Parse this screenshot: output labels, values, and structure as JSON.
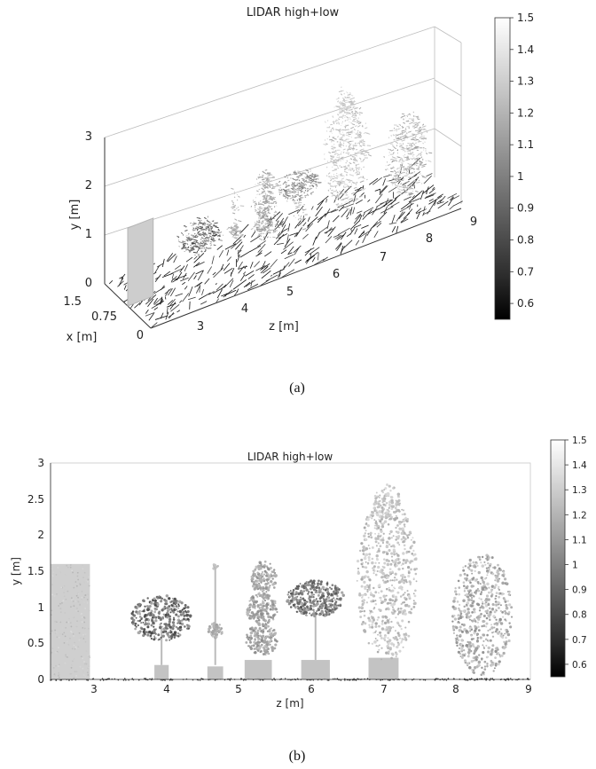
{
  "chart_data": [
    {
      "type": "scatter",
      "panel_label": "(a)",
      "title": "LIDAR high+low",
      "projection": "3d",
      "xlabel": "x [m]",
      "ylabel": "y [m]",
      "zlabel": "z [m]",
      "x_ticks": [
        "0",
        "0.75",
        "1.5"
      ],
      "y_ticks": [
        "0",
        "1",
        "2",
        "3"
      ],
      "z_ticks": [
        "3",
        "4",
        "5",
        "6",
        "7",
        "8",
        "9"
      ],
      "xlim": [
        0,
        1.5
      ],
      "ylim": [
        0,
        3
      ],
      "zlim": [
        2.3,
        9
      ],
      "colormap": "gray",
      "colorbar": {
        "range": [
          0.55,
          1.5
        ],
        "ticks": [
          "0.6",
          "0.7",
          "0.8",
          "0.9",
          "1",
          "1.1",
          "1.2",
          "1.3",
          "1.4",
          "1.5"
        ]
      }
    },
    {
      "type": "scatter",
      "panel_label": "(b)",
      "title": "LIDAR high+low",
      "xlabel": "z [m]",
      "ylabel": "y [m]",
      "x_ticks": [
        "3",
        "4",
        "5",
        "6",
        "7",
        "8",
        "9"
      ],
      "y_ticks": [
        "0",
        "0.5",
        "1",
        "1.5",
        "2",
        "2.5",
        "3"
      ],
      "xlim": [
        2.3,
        9
      ],
      "ylim": [
        0,
        3
      ],
      "colormap": "gray",
      "colorbar": {
        "range": [
          0.55,
          1.5
        ],
        "ticks": [
          "0.6",
          "0.7",
          "0.8",
          "0.9",
          "1",
          "1.1",
          "1.2",
          "1.3",
          "1.4",
          "1.5"
        ]
      }
    }
  ]
}
